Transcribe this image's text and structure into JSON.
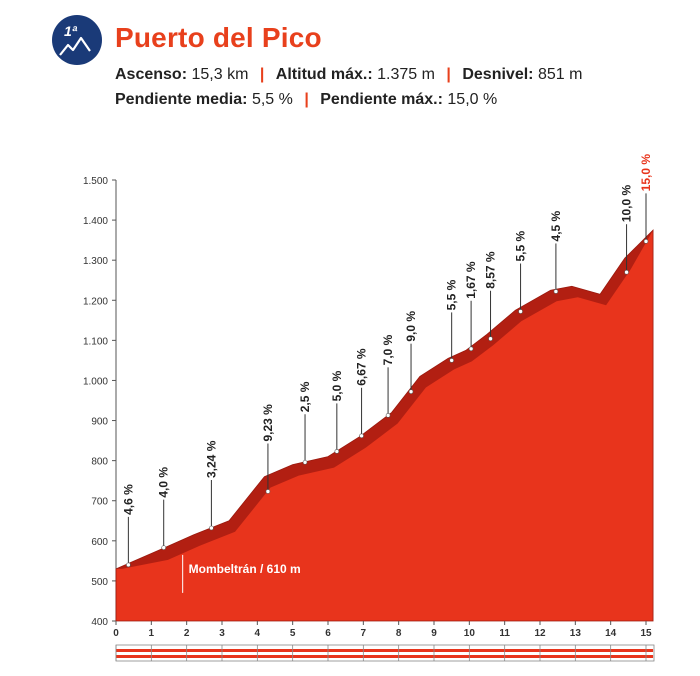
{
  "header": {
    "category": "1ª",
    "title": "Puerto del Pico",
    "stats": [
      {
        "label": "Ascenso:",
        "value": "15,3 km"
      },
      {
        "label": "Altitud máx.:",
        "value": "1.375 m"
      },
      {
        "label": "Desnivel:",
        "value": "851 m"
      },
      {
        "label": "Pendiente media:",
        "value": "5,5 %"
      },
      {
        "label": "Pendiente máx.:",
        "value": "15,0 %"
      }
    ]
  },
  "chart_data": {
    "type": "area",
    "xlim": [
      0,
      15.2
    ],
    "ylim": [
      400,
      1500
    ],
    "x_ticks": [
      0,
      1,
      2,
      3,
      4,
      5,
      6,
      7,
      8,
      9,
      10,
      11,
      12,
      13,
      14,
      15
    ],
    "y_ticks": [
      400,
      500,
      600,
      700,
      800,
      900,
      1000,
      1100,
      1200,
      1300,
      1400,
      1500
    ],
    "y_tick_labels": [
      "400",
      "500",
      "600",
      "700",
      "800",
      "900",
      "1.000",
      "1.100",
      "1.200",
      "1.300",
      "1.400",
      "1.500"
    ],
    "x": [
      0,
      1.3,
      2.2,
      3.2,
      4.2,
      5.0,
      6.0,
      6.9,
      7.8,
      8.6,
      9.4,
      9.9,
      10.5,
      11.3,
      12.3,
      12.9,
      13.7,
      14.4,
      15.2
    ],
    "y": [
      530,
      580,
      615,
      650,
      760,
      790,
      810,
      860,
      920,
      1010,
      1055,
      1075,
      1115,
      1175,
      1225,
      1235,
      1215,
      1305,
      1375
    ],
    "markers": [
      {
        "x": 0.35,
        "y": 540,
        "label": "4,6 %",
        "highlight": false
      },
      {
        "x": 1.35,
        "y": 583,
        "label": "4,0 %",
        "highlight": false
      },
      {
        "x": 2.7,
        "y": 632,
        "label": "3,24 %",
        "highlight": false
      },
      {
        "x": 4.3,
        "y": 723,
        "label": "9,23 %",
        "highlight": false
      },
      {
        "x": 5.35,
        "y": 796,
        "label": "2,5 %",
        "highlight": false
      },
      {
        "x": 6.25,
        "y": 823,
        "label": "5,0 %",
        "highlight": false
      },
      {
        "x": 6.95,
        "y": 862,
        "label": "6,67 %",
        "highlight": false
      },
      {
        "x": 7.7,
        "y": 913,
        "label": "7,0 %",
        "highlight": false
      },
      {
        "x": 8.35,
        "y": 972,
        "label": "9,0 %",
        "highlight": false
      },
      {
        "x": 9.5,
        "y": 1050,
        "label": "5,5 %",
        "highlight": false
      },
      {
        "x": 10.05,
        "y": 1079,
        "label": "1,67 %",
        "highlight": false
      },
      {
        "x": 10.6,
        "y": 1104,
        "label": "8,57 %",
        "highlight": false
      },
      {
        "x": 11.45,
        "y": 1172,
        "label": "5,5 %",
        "highlight": false
      },
      {
        "x": 12.45,
        "y": 1222,
        "label": "4,5 %",
        "highlight": false
      },
      {
        "x": 14.45,
        "y": 1270,
        "label": "10,0 %",
        "highlight": false
      },
      {
        "x": 15.0,
        "y": 1347,
        "label": "15,0 %",
        "highlight": true
      }
    ],
    "annotations": [
      {
        "x": 2.0,
        "y": 505,
        "label": "Mombeltrán / 610 m"
      }
    ],
    "colors": {
      "fill": "#e8341c",
      "top_band": "#a81c10",
      "highlight_text": "#e8341c",
      "title": "#e8401c",
      "badge": "#1a3a78"
    },
    "grid": false
  }
}
